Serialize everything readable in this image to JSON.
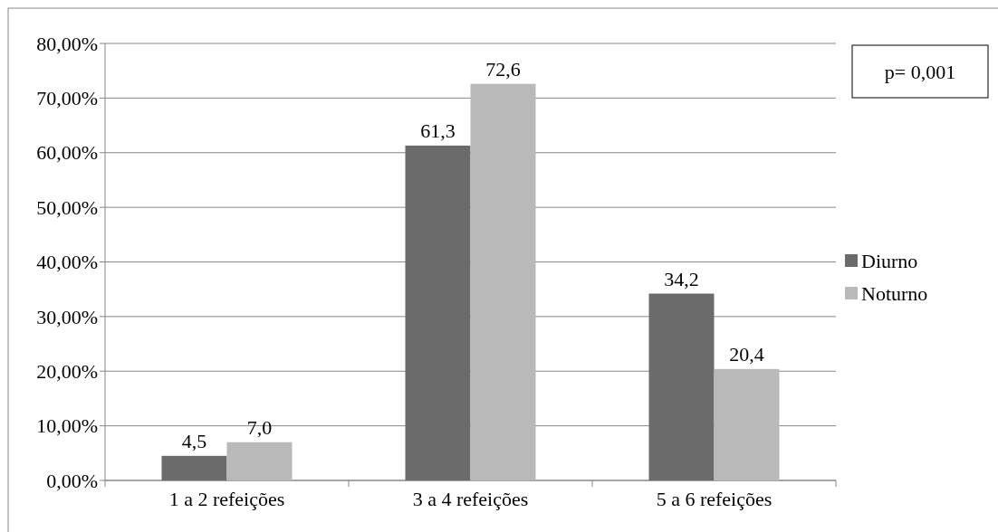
{
  "chart_data": {
    "type": "bar",
    "categories": [
      "1 a 2 refeições",
      "3 a 4 refeições",
      "5 a 6 refeições"
    ],
    "series": [
      {
        "name": "Diurno",
        "color": "#6b6b6b",
        "values": [
          4.5,
          61.3,
          34.2
        ],
        "value_labels": [
          "4,5",
          "61,3",
          "34,2"
        ]
      },
      {
        "name": "Noturno",
        "color": "#b9b9b9",
        "values": [
          7.0,
          72.6,
          20.4
        ],
        "value_labels": [
          "7,0",
          "72,6",
          "20,4"
        ]
      }
    ],
    "ylim": [
      0,
      80
    ],
    "yticks": [
      {
        "value": 0,
        "label": "0,00%"
      },
      {
        "value": 10,
        "label": "10,00%"
      },
      {
        "value": 20,
        "label": "20,00%"
      },
      {
        "value": 30,
        "label": "30,00%"
      },
      {
        "value": 40,
        "label": "40,00%"
      },
      {
        "value": 50,
        "label": "50,00%"
      },
      {
        "value": 60,
        "label": "60,00%"
      },
      {
        "value": 70,
        "label": "70,00%"
      },
      {
        "value": 80,
        "label": "80,00%"
      }
    ],
    "grid": "y",
    "legend": "right",
    "annotations": [
      "p= 0,001"
    ]
  }
}
